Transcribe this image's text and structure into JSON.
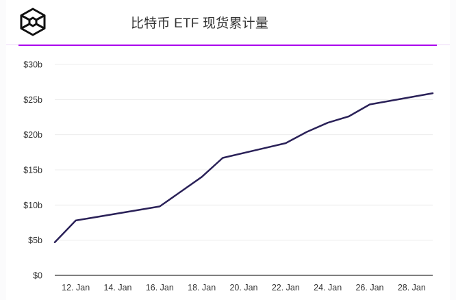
{
  "header": {
    "logo_icon": "hexagon-cube-logo-icon",
    "title": "比特币 ETF 现货累计量",
    "accent_color": "#aa00ee"
  },
  "chart_data": {
    "type": "line",
    "title": "比特币 ETF 现货累计量",
    "xlabel": "",
    "ylabel": "",
    "x": [
      "11. Jan",
      "12. Jan",
      "16. Jan",
      "18. Jan",
      "19. Jan",
      "22. Jan",
      "23. Jan",
      "24. Jan",
      "25. Jan",
      "26. Jan",
      "29. Jan"
    ],
    "series": [
      {
        "name": "Cumulative Spot Bitcoin ETF Volume ($b)",
        "color": "#2a2158",
        "values": [
          4.7,
          7.8,
          9.8,
          14.0,
          16.7,
          18.8,
          20.4,
          21.7,
          22.6,
          24.3,
          25.9
        ]
      }
    ],
    "x_ticks": [
      "12. Jan",
      "14. Jan",
      "16. Jan",
      "18. Jan",
      "20. Jan",
      "22. Jan",
      "24. Jan",
      "26. Jan",
      "28. Jan"
    ],
    "y_ticks": [
      "$0",
      "$5b",
      "$10b",
      "$15b",
      "$20b",
      "$25b",
      "$30b"
    ],
    "ylim": [
      0,
      30
    ],
    "grid": true,
    "legend": "none"
  }
}
